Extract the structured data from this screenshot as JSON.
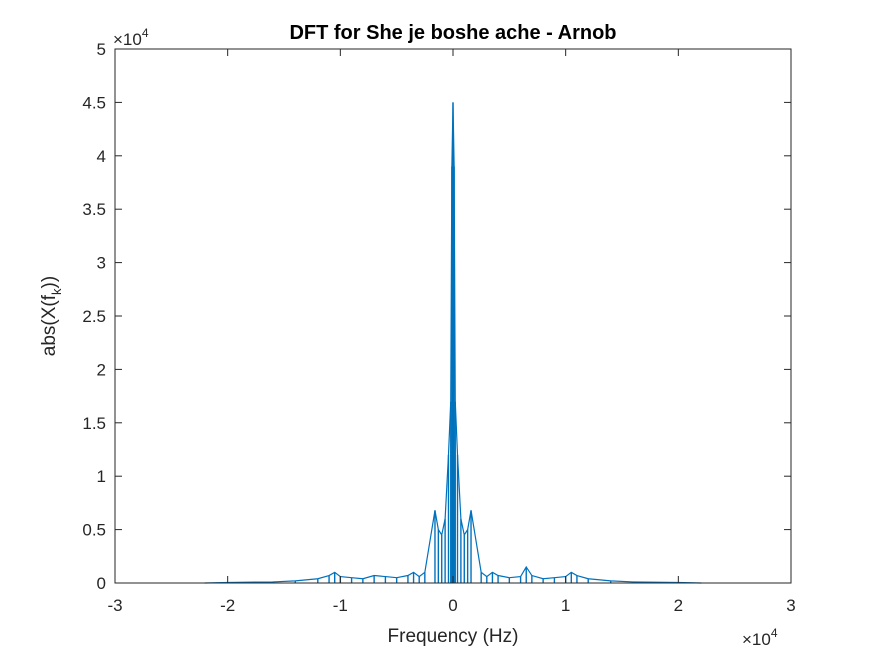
{
  "chart_data": {
    "type": "line",
    "title": "DFT for She je boshe ache - Arnob",
    "xlabel": "Frequency (Hz)",
    "ylabel_main": "abs(X(f",
    "ylabel_sub": "k",
    "ylabel_end": "))",
    "x_multiplier_prefix": "×10",
    "x_multiplier_exp": "4",
    "y_multiplier_prefix": "×10",
    "y_multiplier_exp": "4",
    "xlim": [
      -30000,
      30000
    ],
    "ylim": [
      0,
      50000
    ],
    "x_ticks": [
      -30000,
      -20000,
      -10000,
      0,
      10000,
      20000,
      30000
    ],
    "x_tick_labels": [
      "-3",
      "-2",
      "-1",
      "0",
      "1",
      "2",
      "3"
    ],
    "y_ticks": [
      0,
      5000,
      10000,
      15000,
      20000,
      25000,
      30000,
      35000,
      40000,
      45000,
      50000
    ],
    "y_tick_labels": [
      "0",
      "0.5",
      "1",
      "1.5",
      "2",
      "2.5",
      "3",
      "3.5",
      "4",
      "4.5",
      "5"
    ],
    "grid": false,
    "series_color": "#0072BD",
    "series": [
      {
        "x": [
          -22050,
          -20000,
          -16000,
          -14000,
          -12000,
          -11000,
          -10500,
          -10000,
          -9000,
          -8000,
          -7000,
          -6000,
          -5000,
          -4000,
          -3500,
          -3000,
          -2500,
          -1600,
          -1300,
          -1000,
          -700,
          -400,
          -200,
          -100,
          0,
          100,
          200,
          400,
          700,
          1000,
          1300,
          1600,
          2500,
          3000,
          3500,
          4000,
          5000,
          6000,
          6500,
          7000,
          8000,
          9000,
          10000,
          10500,
          11000,
          12000,
          14000,
          16000,
          20000,
          22050
        ],
        "y": [
          0,
          50,
          100,
          200,
          400,
          700,
          1000,
          600,
          500,
          400,
          700,
          600,
          500,
          700,
          1000,
          600,
          1000,
          6800,
          5000,
          4500,
          6000,
          12000,
          17000,
          39000,
          45000,
          39000,
          17000,
          12000,
          6000,
          4500,
          5000,
          6800,
          1000,
          600,
          1000,
          700,
          500,
          600,
          1500,
          700,
          400,
          500,
          600,
          1000,
          700,
          400,
          200,
          100,
          50,
          0
        ]
      }
    ]
  }
}
